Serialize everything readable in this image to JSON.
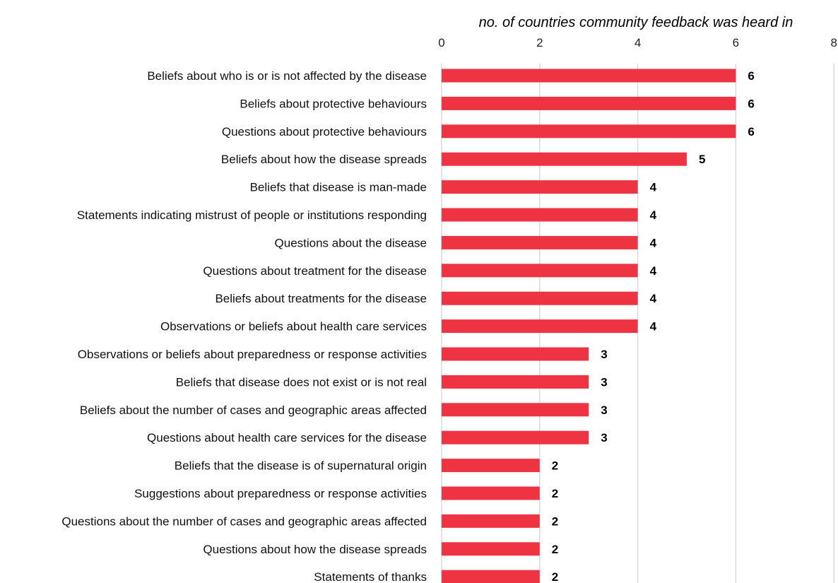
{
  "chart_data": {
    "type": "bar",
    "orientation": "horizontal",
    "title": "",
    "xlabel": "no. of countries community feedback was heard in",
    "ylabel": "",
    "xlim": [
      0,
      8
    ],
    "xticks": [
      0,
      2,
      4,
      6,
      8
    ],
    "grid": true,
    "bar_color": "#ee3342",
    "categories": [
      "Beliefs about who is or is not affected by the disease",
      "Beliefs about protective behaviours",
      "Questions about protective behaviours",
      "Beliefs about how the disease spreads",
      "Beliefs that disease is man-made",
      "Statements indicating mistrust of people or institutions responding",
      "Questions about the disease",
      "Questions about treatment for the disease",
      "Beliefs about treatments for the disease",
      "Observations or beliefs about health care services",
      "Observations or beliefs about preparedness or response activities",
      "Beliefs that disease does not exist or is not real",
      "Beliefs about the number of cases and geographic areas affected",
      "Questions about health care services for the disease",
      "Beliefs that the disease is of supernatural origin",
      "Suggestions about preparedness or response activities",
      "Questions about the number of cases and geographic areas affected",
      "Questions about how the disease spreads",
      "Statements of thanks"
    ],
    "values": [
      6,
      6,
      6,
      5,
      4,
      4,
      4,
      4,
      4,
      4,
      3,
      3,
      3,
      3,
      2,
      2,
      2,
      2,
      2
    ]
  }
}
